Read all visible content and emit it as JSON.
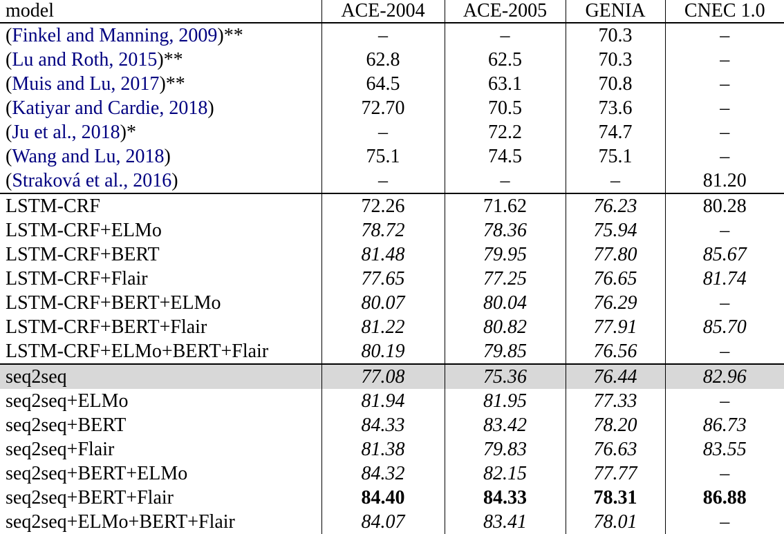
{
  "colors": {
    "link": "#000080",
    "highlight": "#d8d8d8",
    "border": "#000000",
    "background": "#ffffff",
    "text": "#000000"
  },
  "table": {
    "header": [
      "model",
      "ACE-2004",
      "ACE-2005",
      "GENIA",
      "CNEC 1.0"
    ],
    "sections": [
      {
        "name": "prior-work",
        "rows": [
          {
            "cite": {
              "open": "(",
              "text": "Finkel and Manning, 2009",
              "close": ")**"
            },
            "cells": [
              {
                "v": "–",
                "s": "r"
              },
              {
                "v": "–",
                "s": "r"
              },
              {
                "v": "70.3",
                "s": "r"
              },
              {
                "v": "–",
                "s": "r"
              }
            ]
          },
          {
            "cite": {
              "open": "(",
              "text": "Lu and Roth, 2015",
              "close": ")**"
            },
            "cells": [
              {
                "v": "62.8",
                "s": "r"
              },
              {
                "v": "62.5",
                "s": "r"
              },
              {
                "v": "70.3",
                "s": "r"
              },
              {
                "v": "–",
                "s": "r"
              }
            ]
          },
          {
            "cite": {
              "open": "(",
              "text": "Muis and Lu, 2017",
              "close": ")**"
            },
            "cells": [
              {
                "v": "64.5",
                "s": "r"
              },
              {
                "v": "63.1",
                "s": "r"
              },
              {
                "v": "70.8",
                "s": "r"
              },
              {
                "v": "–",
                "s": "r"
              }
            ]
          },
          {
            "cite": {
              "open": "(",
              "text": "Katiyar and Cardie, 2018",
              "close": ")"
            },
            "cells": [
              {
                "v": "72.70",
                "s": "r"
              },
              {
                "v": "70.5",
                "s": "r"
              },
              {
                "v": "73.6",
                "s": "r"
              },
              {
                "v": "–",
                "s": "r"
              }
            ]
          },
          {
            "cite": {
              "open": "(",
              "text": "Ju et al., 2018",
              "close": ")*"
            },
            "cells": [
              {
                "v": "–",
                "s": "r"
              },
              {
                "v": "72.2",
                "s": "r"
              },
              {
                "v": "74.7",
                "s": "r"
              },
              {
                "v": "–",
                "s": "r"
              }
            ]
          },
          {
            "cite": {
              "open": "(",
              "text": "Wang and Lu, 2018",
              "close": ")"
            },
            "cells": [
              {
                "v": "75.1",
                "s": "r"
              },
              {
                "v": "74.5",
                "s": "r"
              },
              {
                "v": "75.1",
                "s": "r"
              },
              {
                "v": "–",
                "s": "r"
              }
            ]
          },
          {
            "cite": {
              "open": "(",
              "text": "Straková et al., 2016",
              "close": ")"
            },
            "cells": [
              {
                "v": "–",
                "s": "r"
              },
              {
                "v": "–",
                "s": "r"
              },
              {
                "v": "–",
                "s": "r"
              },
              {
                "v": "81.20",
                "s": "r"
              }
            ]
          }
        ]
      },
      {
        "name": "lstm-crf",
        "rows": [
          {
            "label": "LSTM-CRF",
            "cells": [
              {
                "v": "72.26",
                "s": "r"
              },
              {
                "v": "71.62",
                "s": "r"
              },
              {
                "v": "76.23",
                "s": "i"
              },
              {
                "v": "80.28",
                "s": "r"
              }
            ]
          },
          {
            "label": "LSTM-CRF+ELMo",
            "cells": [
              {
                "v": "78.72",
                "s": "i"
              },
              {
                "v": "78.36",
                "s": "i"
              },
              {
                "v": "75.94",
                "s": "i"
              },
              {
                "v": "–",
                "s": "r"
              }
            ]
          },
          {
            "label": "LSTM-CRF+BERT",
            "cells": [
              {
                "v": "81.48",
                "s": "i"
              },
              {
                "v": "79.95",
                "s": "i"
              },
              {
                "v": "77.80",
                "s": "i"
              },
              {
                "v": "85.67",
                "s": "i"
              }
            ]
          },
          {
            "label": "LSTM-CRF+Flair",
            "cells": [
              {
                "v": "77.65",
                "s": "i"
              },
              {
                "v": "77.25",
                "s": "i"
              },
              {
                "v": "76.65",
                "s": "i"
              },
              {
                "v": "81.74",
                "s": "i"
              }
            ]
          },
          {
            "label": "LSTM-CRF+BERT+ELMo",
            "cells": [
              {
                "v": "80.07",
                "s": "i"
              },
              {
                "v": "80.04",
                "s": "i"
              },
              {
                "v": "76.29",
                "s": "i"
              },
              {
                "v": "–",
                "s": "r"
              }
            ]
          },
          {
            "label": "LSTM-CRF+BERT+Flair",
            "cells": [
              {
                "v": "81.22",
                "s": "i"
              },
              {
                "v": "80.82",
                "s": "i"
              },
              {
                "v": "77.91",
                "s": "i"
              },
              {
                "v": "85.70",
                "s": "i"
              }
            ]
          },
          {
            "label": "LSTM-CRF+ELMo+BERT+Flair",
            "cells": [
              {
                "v": "80.19",
                "s": "i"
              },
              {
                "v": "79.85",
                "s": "i"
              },
              {
                "v": "76.56",
                "s": "i"
              },
              {
                "v": "–",
                "s": "r"
              }
            ]
          }
        ]
      },
      {
        "name": "seq2seq",
        "rows": [
          {
            "label": "seq2seq",
            "highlight": true,
            "cells": [
              {
                "v": "77.08",
                "s": "i"
              },
              {
                "v": "75.36",
                "s": "i"
              },
              {
                "v": "76.44",
                "s": "i"
              },
              {
                "v": "82.96",
                "s": "i"
              }
            ]
          },
          {
            "label": "seq2seq+ELMo",
            "cells": [
              {
                "v": "81.94",
                "s": "i"
              },
              {
                "v": "81.95",
                "s": "i"
              },
              {
                "v": "77.33",
                "s": "i"
              },
              {
                "v": "–",
                "s": "r"
              }
            ]
          },
          {
            "label": "seq2seq+BERT",
            "cells": [
              {
                "v": "84.33",
                "s": "i"
              },
              {
                "v": "83.42",
                "s": "i"
              },
              {
                "v": "78.20",
                "s": "i"
              },
              {
                "v": "86.73",
                "s": "i"
              }
            ]
          },
          {
            "label": "seq2seq+Flair",
            "cells": [
              {
                "v": "81.38",
                "s": "i"
              },
              {
                "v": "79.83",
                "s": "i"
              },
              {
                "v": "76.63",
                "s": "i"
              },
              {
                "v": "83.55",
                "s": "i"
              }
            ]
          },
          {
            "label": "seq2seq+BERT+ELMo",
            "cells": [
              {
                "v": "84.32",
                "s": "i"
              },
              {
                "v": "82.15",
                "s": "i"
              },
              {
                "v": "77.77",
                "s": "i"
              },
              {
                "v": "–",
                "s": "r"
              }
            ]
          },
          {
            "label": "seq2seq+BERT+Flair",
            "cells": [
              {
                "v": "84.40",
                "s": "b"
              },
              {
                "v": "84.33",
                "s": "b"
              },
              {
                "v": "78.31",
                "s": "b"
              },
              {
                "v": "86.88",
                "s": "b"
              }
            ]
          },
          {
            "label": "seq2seq+ELMo+BERT+Flair",
            "cells": [
              {
                "v": "84.07",
                "s": "i"
              },
              {
                "v": "83.41",
                "s": "i"
              },
              {
                "v": "78.01",
                "s": "i"
              },
              {
                "v": "–",
                "s": "r"
              }
            ]
          }
        ]
      }
    ]
  }
}
